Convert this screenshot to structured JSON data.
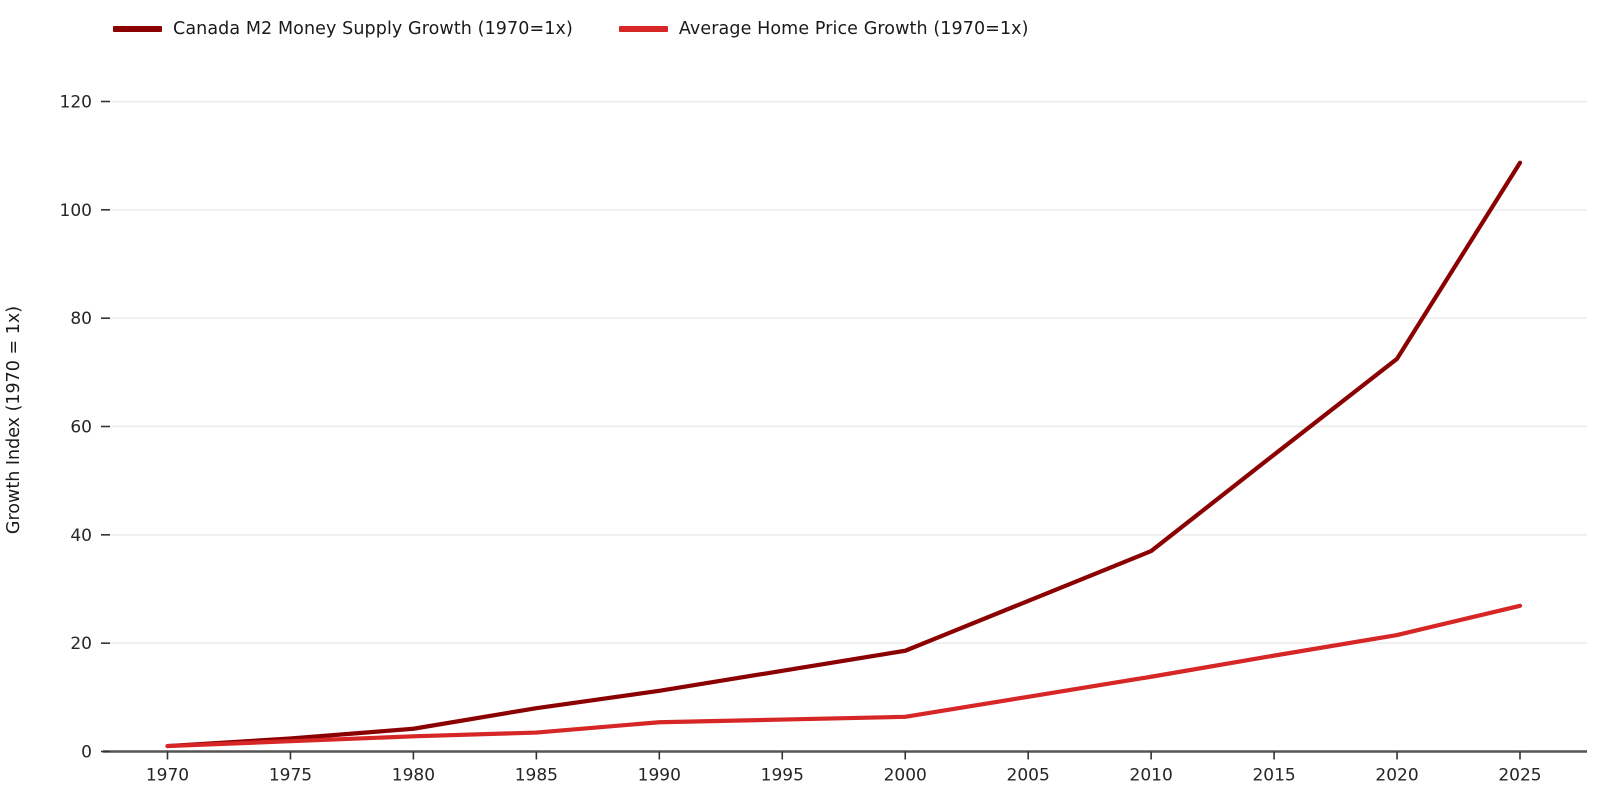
{
  "chart_data": {
    "type": "line",
    "title": "",
    "xlabel": "",
    "ylabel": "Growth Index (1970 = 1x)",
    "x": [
      1970,
      1975,
      1980,
      1985,
      1990,
      1995,
      2000,
      2005,
      2010,
      2015,
      2020,
      2025
    ],
    "series": [
      {
        "name": "Canada M2 Money Supply Growth (1970=1x)",
        "color": "#8B0000",
        "values": [
          1.0,
          2.4,
          4.2,
          8.0,
          11.2,
          14.9,
          18.6,
          27.8,
          37.0,
          54.8,
          72.5,
          108.7
        ]
      },
      {
        "name": "Average Home Price Growth (1970=1x)",
        "color": "#D62626",
        "values": [
          1.0,
          1.9,
          2.8,
          3.5,
          5.4,
          5.9,
          6.4,
          10.1,
          13.8,
          17.7,
          21.5,
          26.9
        ]
      }
    ],
    "xticks": [
      1970,
      1975,
      1980,
      1985,
      1990,
      1995,
      2000,
      2005,
      2010,
      2015,
      2020,
      2025
    ],
    "yticks": [
      0,
      20,
      40,
      60,
      80,
      100,
      120
    ],
    "ylim": [
      0,
      123
    ],
    "grid": "horizontal",
    "legend_position": "top-left"
  },
  "colors": {
    "grid_line": "#EBEBEB",
    "axis_spine": "#555555",
    "tick_mark": "#333333",
    "tick_text": "#262626",
    "background": "#FFFFFF"
  }
}
